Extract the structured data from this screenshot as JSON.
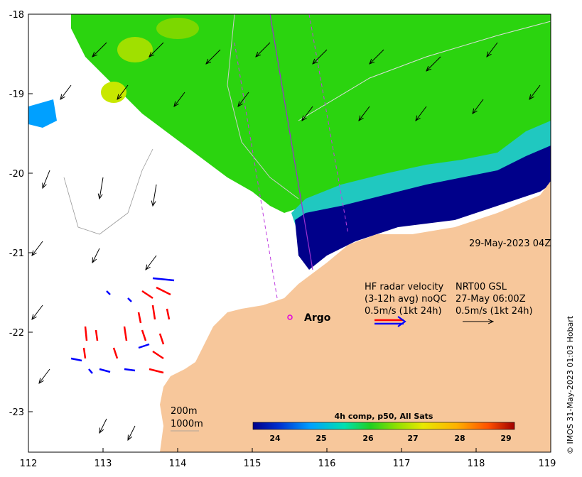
{
  "map": {
    "x_ticks": [
      "112",
      "113",
      "114",
      "115",
      "116",
      "117",
      "118",
      "119"
    ],
    "y_ticks": [
      "-18",
      "-19",
      "-20",
      "-21",
      "-22",
      "-23"
    ],
    "lon_range": [
      112,
      119
    ],
    "lat_range": [
      -23.5,
      -18
    ]
  },
  "annotations": {
    "timestamp": "29-May-2023 04Z",
    "hf_line1": "HF radar velocity",
    "hf_line2": "(3-12h avg) noQC",
    "hf_line3": "0.5m/s (1kt 24h)",
    "nrt_line1": "NRT00 GSL",
    "nrt_line2": "27-May 06:00Z",
    "nrt_line3": "0.5m/s (1kt 24h)",
    "argo_label": "Argo",
    "contour_200": "200m",
    "contour_1000": "1000m",
    "credit": "© IMOS 31-May-2023 01:03 Hobart"
  },
  "colorbar": {
    "title": "4h comp, p50, All Sats",
    "ticks": [
      "24",
      "25",
      "26",
      "27",
      "28",
      "29"
    ],
    "range": [
      23.5,
      29.5
    ]
  },
  "colors": {
    "land": "#f7c79b",
    "warm_water": "#2bd40f",
    "cool_water": "#00008a",
    "argo": "#e000e0",
    "hf_red": "#ff0000",
    "hf_blue": "#0000ff"
  }
}
